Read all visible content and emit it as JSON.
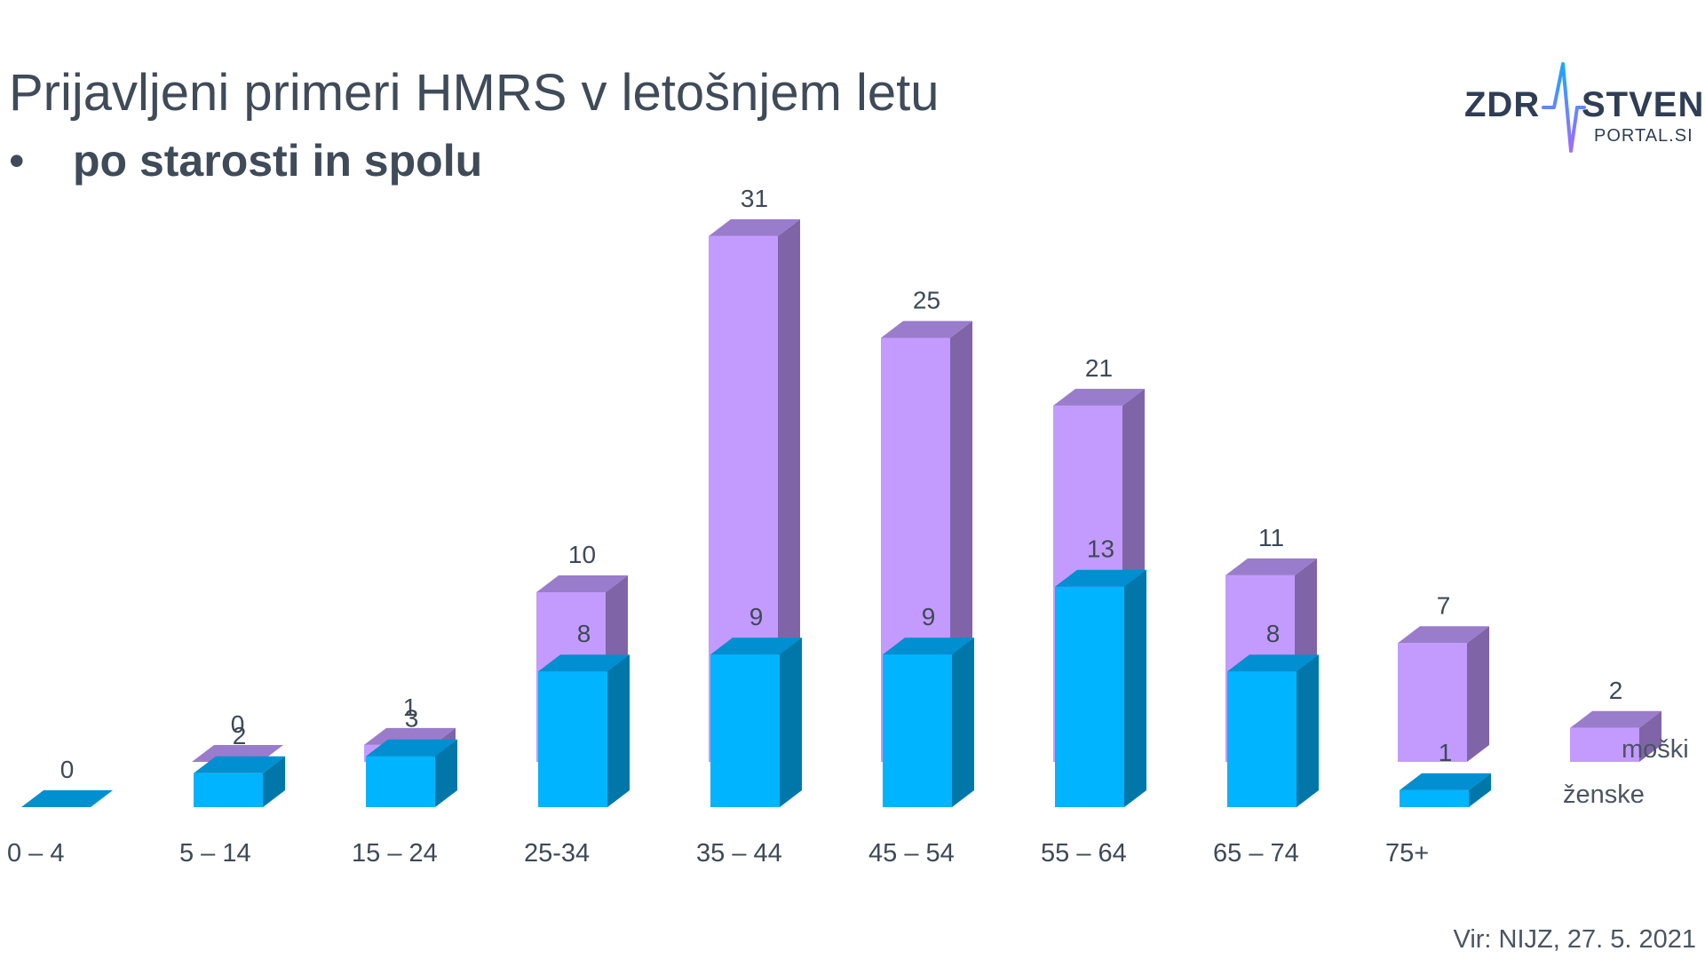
{
  "title": "Prijavljeni primeri HMRS v letošnjem letu",
  "subtitle_bullet": "•",
  "subtitle": "po starosti in spolu",
  "logo": {
    "left_text": "ZDR",
    "right_text": "STVENI",
    "sub_text": "PORTAL.SI",
    "icon": "pulse-line-icon"
  },
  "source": "Vir: NIJZ, 27. 5. 2021",
  "colors": {
    "zenske_front": "#00b4ff",
    "zenske_top": "#008fd0",
    "zenske_side": "#0077a8",
    "moski_front": "#c39bff",
    "moski_top": "#9a7ccc",
    "moski_side": "#7f65a8",
    "text": "#3d4a57"
  },
  "chart_data": {
    "type": "bar",
    "categories": [
      "0 – 4",
      "5 – 14",
      "15 – 24",
      "25-34",
      "35 – 44",
      "45 – 54",
      "55 – 64",
      "65 – 74",
      "75+"
    ],
    "series": [
      {
        "name": "ženske",
        "values": [
          0,
          2,
          3,
          8,
          9,
          9,
          13,
          8,
          1
        ]
      },
      {
        "name": "moški",
        "values": [
          0,
          1,
          10,
          31,
          25,
          21,
          11,
          7,
          2
        ]
      }
    ],
    "title": "Prijavljeni primeri HMRS v letošnjem letu",
    "xlabel": "",
    "ylabel": "",
    "ylim": [
      0,
      31
    ],
    "grid": false,
    "legend": "right",
    "style": "3d-column"
  }
}
